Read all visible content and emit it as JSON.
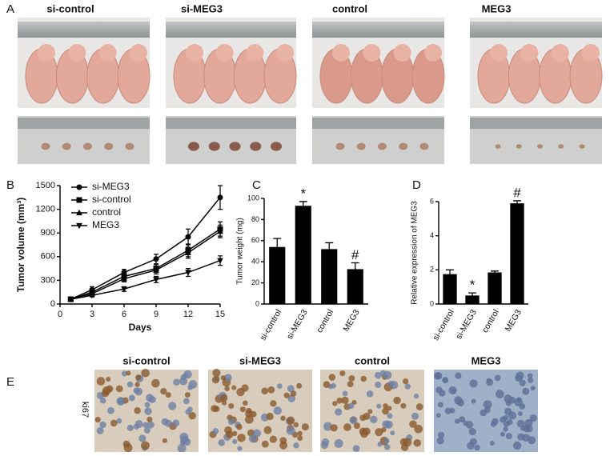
{
  "panel_labels": [
    "A",
    "B",
    "C",
    "D",
    "E"
  ],
  "figure_a": {
    "columns": [
      "si-control",
      "si-MEG3",
      "control",
      "MEG3"
    ]
  },
  "figure_e": {
    "columns": [
      "si-control",
      "si-MEG3",
      "control",
      "MEG3"
    ],
    "row_label": "ki67"
  },
  "chart_data": [
    {
      "type": "line",
      "x_label": "Days",
      "y_label": "Tumor volume (mm³)",
      "x": [
        1,
        3,
        6,
        9,
        12,
        15
      ],
      "xlim": [
        0,
        15
      ],
      "xticks": [
        0,
        3,
        6,
        9,
        12,
        15
      ],
      "ylim": [
        0,
        1500
      ],
      "yticks": [
        0,
        300,
        600,
        900,
        1200,
        1500
      ],
      "legend": "upper left",
      "series": [
        {
          "name": "si-MEG3",
          "color": "#000000",
          "marker": "circle",
          "values": [
            60,
            180,
            400,
            570,
            850,
            1350
          ],
          "errors": [
            10,
            40,
            40,
            60,
            100,
            150
          ]
        },
        {
          "name": "si-control",
          "color": "#000000",
          "marker": "square",
          "values": [
            60,
            150,
            350,
            450,
            680,
            950
          ],
          "errors": [
            10,
            30,
            40,
            50,
            80,
            90
          ]
        },
        {
          "name": "control",
          "color": "#000000",
          "marker": "triangle",
          "values": [
            60,
            130,
            320,
            430,
            650,
            920
          ],
          "errors": [
            10,
            30,
            40,
            50,
            70,
            80
          ]
        },
        {
          "name": "MEG3",
          "color": "#000000",
          "marker": "triangle-down",
          "values": [
            60,
            110,
            190,
            310,
            400,
            550
          ],
          "errors": [
            10,
            20,
            30,
            40,
            50,
            60
          ]
        }
      ]
    },
    {
      "type": "bar",
      "y_label": "Tumor weight (mg)",
      "color": "#000000",
      "categories": [
        "si-control",
        "si-MEG3",
        "control",
        "MEG3"
      ],
      "values": [
        54,
        93,
        52,
        33
      ],
      "errors": [
        8,
        4,
        6,
        6
      ],
      "ylim": [
        0,
        100
      ],
      "yticks": [
        0,
        20,
        40,
        60,
        80,
        100
      ],
      "annotations": [
        {
          "index": 1,
          "text": "*"
        },
        {
          "index": 3,
          "text": "#"
        }
      ]
    },
    {
      "type": "bar",
      "y_label": "Relative expression of MEG3",
      "color": "#000000",
      "categories": [
        "si-control",
        "si-MEG3",
        "control",
        "MEG3"
      ],
      "values": [
        1.75,
        0.5,
        1.85,
        5.9
      ],
      "errors": [
        0.25,
        0.15,
        0.08,
        0.15
      ],
      "ylim": [
        0,
        6
      ],
      "yticks": [
        0,
        2,
        4,
        6
      ],
      "annotations": [
        {
          "index": 1,
          "text": "*"
        },
        {
          "index": 3,
          "text": "#"
        }
      ]
    }
  ]
}
